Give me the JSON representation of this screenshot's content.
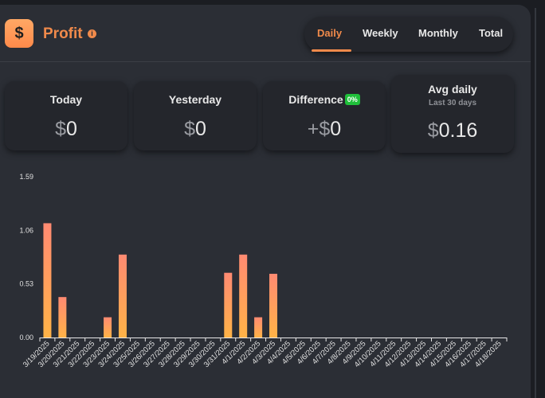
{
  "header": {
    "logo_symbol": "$",
    "title": "Profit",
    "info_symbol": "i",
    "tabs": [
      {
        "label": "Daily",
        "active": true
      },
      {
        "label": "Weekly",
        "active": false
      },
      {
        "label": "Monthly",
        "active": false
      },
      {
        "label": "Total",
        "active": false
      }
    ]
  },
  "cards": {
    "today": {
      "label": "Today",
      "currency": "$",
      "value": "0"
    },
    "yesterday": {
      "label": "Yesterday",
      "currency": "$",
      "value": "0"
    },
    "difference": {
      "label": "Difference",
      "badge": "0%",
      "prefix": "+",
      "currency": "$",
      "value": "0"
    },
    "avg_daily": {
      "label": "Avg daily",
      "sublabel": "Last 30 days",
      "currency": "$",
      "value": "0.16"
    }
  },
  "colors": {
    "accent": "#f08a4b",
    "badge_green": "#1fbf3a",
    "bar_top": "#ff8a72",
    "bar_bottom": "#ffb347"
  },
  "chart_data": {
    "type": "bar",
    "categories": [
      "3/19/2025",
      "3/20/2025",
      "3/21/2025",
      "3/22/2025",
      "3/23/2025",
      "3/24/2025",
      "3/25/2025",
      "3/26/2025",
      "3/27/2025",
      "3/28/2025",
      "3/29/2025",
      "3/30/2025",
      "3/31/2025",
      "4/1/2025",
      "4/2/2025",
      "4/3/2025",
      "4/4/2025",
      "4/5/2025",
      "4/6/2025",
      "4/7/2025",
      "4/8/2025",
      "4/9/2025",
      "4/10/2025",
      "4/11/2025",
      "4/12/2025",
      "4/13/2025",
      "4/14/2025",
      "4/15/2025",
      "4/16/2025",
      "4/17/2025",
      "4/18/2025"
    ],
    "values": [
      1.13,
      0.4,
      0,
      0,
      0.2,
      0.82,
      0,
      0,
      0,
      0,
      0,
      0,
      0.64,
      0.82,
      0.2,
      0.63,
      0,
      0,
      0,
      0,
      0,
      0,
      0,
      0,
      0,
      0,
      0,
      0,
      0,
      0,
      0
    ],
    "y_ticks": [
      "0.00",
      "0.53",
      "1.06",
      "1.59"
    ],
    "ylim": [
      0,
      1.59
    ],
    "grid": false,
    "xlabel": "",
    "ylabel": ""
  }
}
